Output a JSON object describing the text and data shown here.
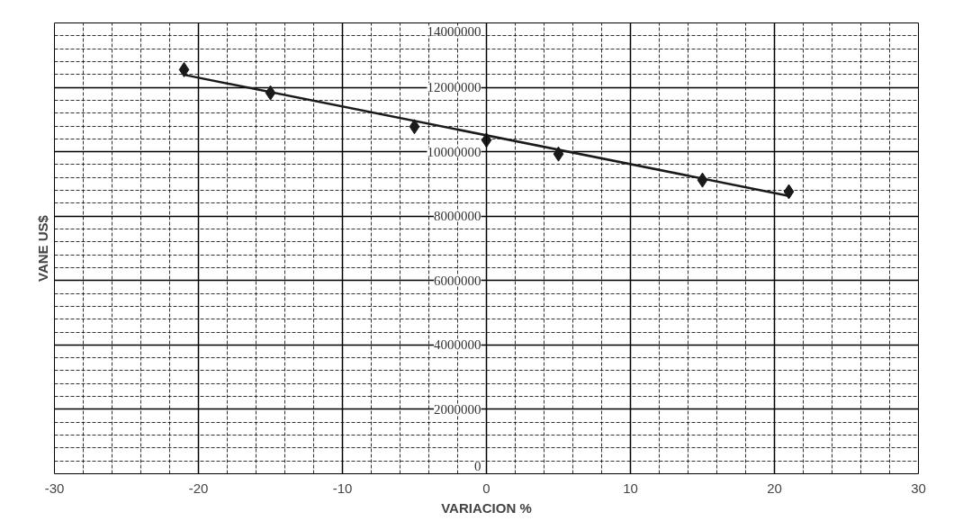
{
  "chart_data": {
    "type": "scatter",
    "xlabel": "VARIACION %",
    "ylabel": "VANE US$",
    "x": [
      -21,
      -15,
      -5,
      0,
      5,
      15,
      21
    ],
    "series": [
      {
        "color": "#1a1a1a",
        "marker": "diamond",
        "values": [
          12550000,
          11830000,
          10780000,
          10360000,
          9930000,
          9120000,
          8760000
        ]
      },
      {
        "type": "line",
        "color": "#1a1a1a",
        "x": [
          -21,
          21
        ],
        "values": [
          12390000,
          8630000
        ],
        "line_style": "solid"
      }
    ],
    "xlim": [
      -30,
      30
    ],
    "ylim": [
      0,
      14000000
    ],
    "xticks": [
      -30,
      -20,
      -10,
      0,
      10,
      20,
      30
    ],
    "yticks": [
      0,
      2000000,
      4000000,
      6000000,
      8000000,
      10000000,
      12000000,
      14000000
    ],
    "grid": true
  }
}
